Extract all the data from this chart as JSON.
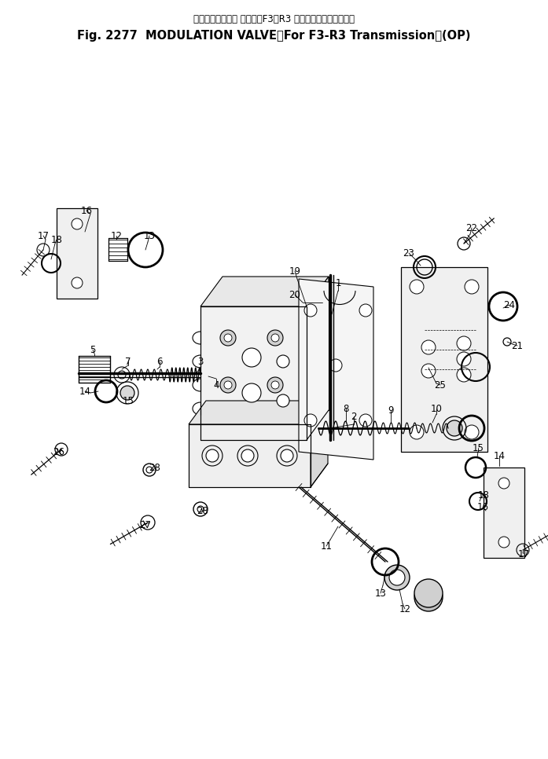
{
  "title_jp": "モジュレーション バルブ（F3・R3 トランスミッション用）",
  "title_en": "Fig. 2277  MODULATION VALVE（For F3-R3 Transmission）(OP)",
  "bg": "#ffffff",
  "lc": "#000000",
  "figw": 6.97,
  "figh": 9.66,
  "dpi": 100,
  "label_fs": 8.5,
  "title_jp_fs": 8.5,
  "title_en_fs": 10.5
}
